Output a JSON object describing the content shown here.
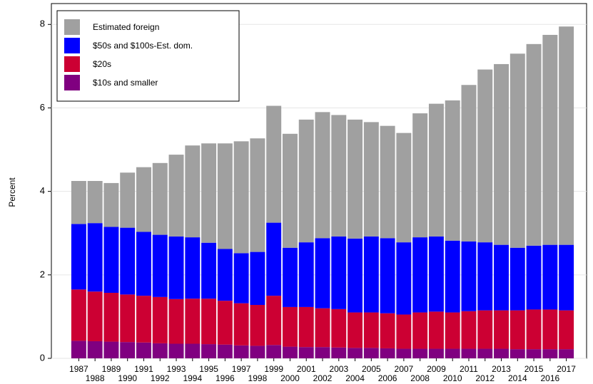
{
  "chart_data": {
    "type": "stacked_bar",
    "ylabel": "Percent",
    "categories": [
      "1987",
      "1988",
      "1989",
      "1990",
      "1991",
      "1992",
      "1993",
      "1994",
      "1995",
      "1996",
      "1997",
      "1998",
      "1999",
      "2000",
      "2001",
      "2002",
      "2003",
      "2004",
      "2005",
      "2006",
      "2007",
      "2008",
      "2009",
      "2010",
      "2011",
      "2012",
      "2013",
      "2014",
      "2015",
      "2016",
      "2017"
    ],
    "series": [
      {
        "name": "$10s and smaller",
        "color": "#800080",
        "values": [
          0.42,
          0.41,
          0.4,
          0.39,
          0.38,
          0.36,
          0.35,
          0.35,
          0.34,
          0.33,
          0.31,
          0.3,
          0.32,
          0.28,
          0.27,
          0.27,
          0.26,
          0.25,
          0.25,
          0.24,
          0.23,
          0.23,
          0.23,
          0.23,
          0.23,
          0.23,
          0.23,
          0.22,
          0.22,
          0.22,
          0.22
        ]
      },
      {
        "name": "$20s",
        "color": "#cc0033",
        "values": [
          1.23,
          1.19,
          1.17,
          1.14,
          1.12,
          1.11,
          1.07,
          1.08,
          1.09,
          1.05,
          1.01,
          0.98,
          1.18,
          0.95,
          0.96,
          0.93,
          0.92,
          0.85,
          0.85,
          0.84,
          0.82,
          0.87,
          0.89,
          0.87,
          0.9,
          0.92,
          0.92,
          0.93,
          0.95,
          0.95,
          0.93
        ]
      },
      {
        "name": "$50s and $100s-Est. dom.",
        "color": "#0000ff",
        "values": [
          1.57,
          1.64,
          1.58,
          1.6,
          1.53,
          1.49,
          1.5,
          1.47,
          1.34,
          1.24,
          1.2,
          1.27,
          1.75,
          1.42,
          1.55,
          1.68,
          1.74,
          1.77,
          1.82,
          1.8,
          1.73,
          1.8,
          1.8,
          1.72,
          1.67,
          1.63,
          1.57,
          1.5,
          1.53,
          1.55,
          1.57
        ]
      },
      {
        "name": "Estimated foreign",
        "color": "#a0a0a0",
        "values": [
          1.03,
          1.01,
          1.05,
          1.32,
          1.55,
          1.72,
          1.96,
          2.2,
          2.38,
          2.53,
          2.68,
          2.72,
          2.8,
          2.73,
          2.94,
          3.02,
          2.91,
          2.85,
          2.74,
          2.69,
          2.62,
          2.97,
          3.18,
          3.36,
          3.75,
          4.14,
          4.33,
          4.65,
          4.83,
          5.03,
          5.23
        ]
      }
    ],
    "ylim": [
      0,
      8.5
    ],
    "yticks": [
      0,
      2,
      4,
      6,
      8
    ],
    "grid": true,
    "legend": "upper left"
  }
}
